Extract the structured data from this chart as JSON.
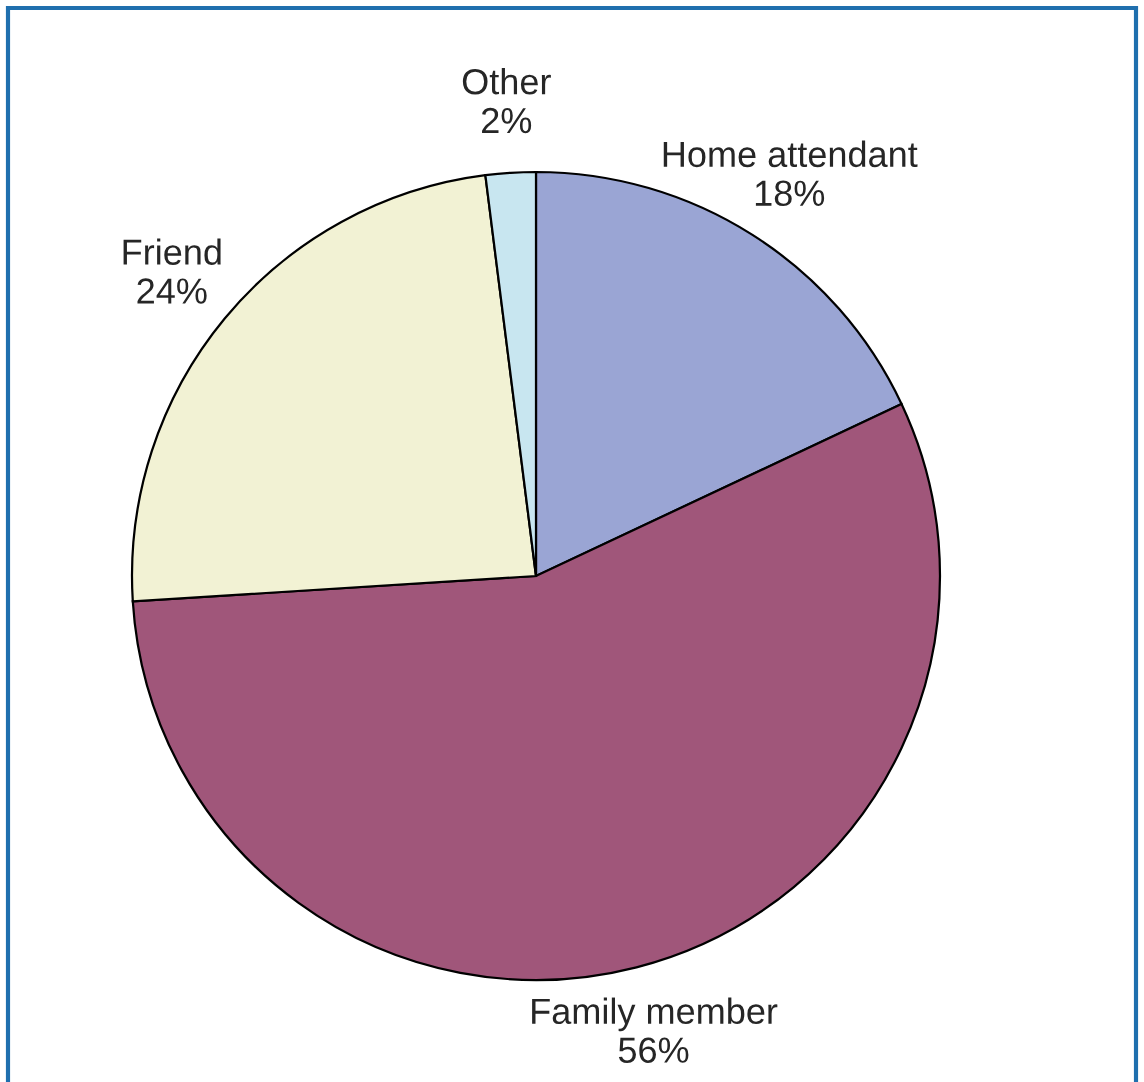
{
  "chart_data": {
    "type": "pie",
    "categories": [
      "Home attendant",
      "Family member",
      "Friend",
      "Other"
    ],
    "values": [
      18,
      56,
      24,
      2
    ],
    "value_labels": [
      "18%",
      "56%",
      "24%",
      "2%"
    ],
    "colors": [
      "#9aa5d4",
      "#a0567a",
      "#f2f2d4",
      "#c8e6f0"
    ]
  }
}
